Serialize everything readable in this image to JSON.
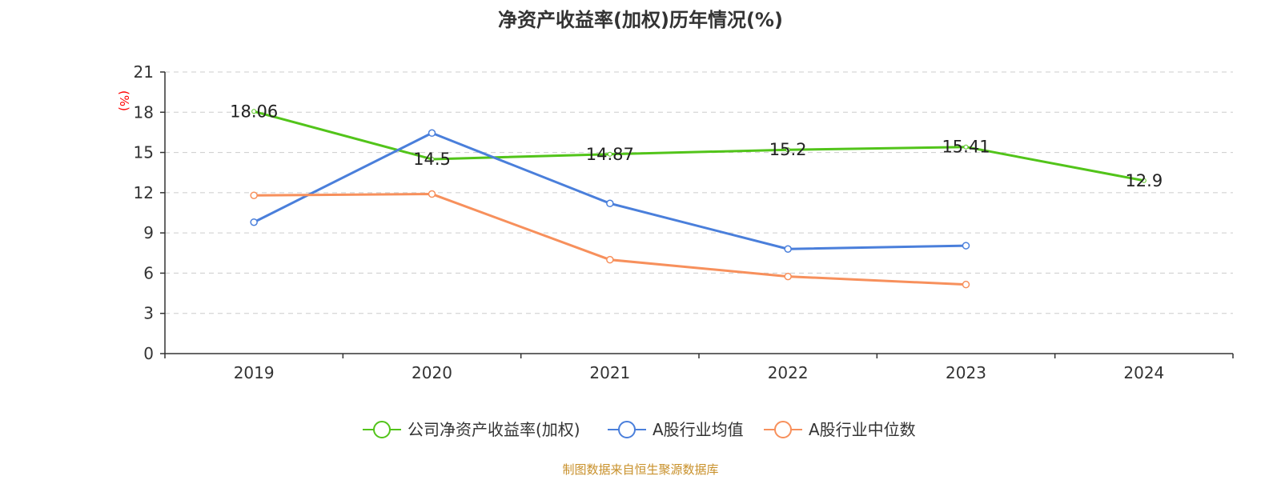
{
  "chart_data": {
    "type": "line",
    "title": "净资产收益率(加权)历年情况(%)",
    "ylabel": "(%)",
    "categories": [
      "2019",
      "2020",
      "2021",
      "2022",
      "2023",
      "2024"
    ],
    "ylim": [
      0,
      21
    ],
    "yticks": [
      0,
      3,
      6,
      9,
      12,
      15,
      18,
      21
    ],
    "grid": true,
    "legend_position": "bottom",
    "series": [
      {
        "name": "公司净资产收益率(加权)",
        "color": "#52c41a",
        "values": [
          18.06,
          14.5,
          14.87,
          15.2,
          15.41,
          12.9
        ],
        "labels": [
          "18.06",
          "14.5",
          "14.87",
          "15.2",
          "15.41",
          "12.9"
        ]
      },
      {
        "name": "A股行业均值",
        "color": "#4a7fdb",
        "values": [
          9.8,
          16.45,
          11.2,
          7.8,
          8.05,
          null
        ]
      },
      {
        "name": "A股行业中位数",
        "color": "#f7905c",
        "values": [
          11.8,
          11.9,
          7.0,
          5.75,
          5.15,
          null
        ]
      }
    ]
  },
  "source_text": "制图数据来自恒生聚源数据库",
  "source_color": "#c8902a",
  "ylabel_color": "#ff0000"
}
